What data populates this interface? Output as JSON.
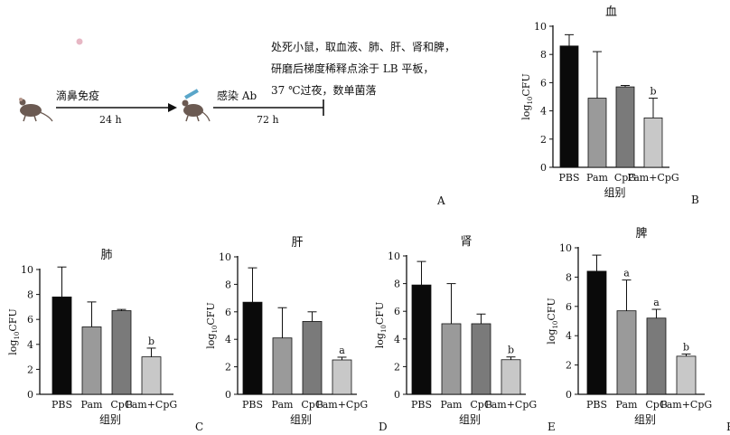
{
  "panel_a": {
    "steps": [
      "滴鼻免疫",
      "感染 Ab"
    ],
    "durations": [
      "24 h",
      "72 h"
    ],
    "note_lines": [
      "处死小鼠，取血液、肺、肝、肾和脾，",
      "研磨后梯度稀释点涂于 LB 平板，",
      "37 ℃过夜，数单菌落"
    ],
    "label": "A"
  },
  "chart_data": [
    {
      "panel": "B",
      "type": "bar",
      "title": "血",
      "xlabel": "组别",
      "ylabel_main": "log",
      "ylabel_sub": "10",
      "ylabel_tail": "CFU",
      "categories": [
        "PBS",
        "Pam",
        "CpG",
        "Pam+CpG"
      ],
      "values": [
        8.6,
        4.9,
        5.7,
        3.5
      ],
      "errors": [
        0.8,
        3.3,
        0.1,
        1.4
      ],
      "annotations": [
        "",
        "",
        "",
        "b"
      ],
      "colors": [
        "#0a0a0a",
        "#9a9a9a",
        "#7a7a7a",
        "#c8c8c8"
      ],
      "ylim": [
        0,
        10
      ],
      "yticks": [
        0,
        2,
        4,
        6,
        8,
        10
      ]
    },
    {
      "panel": "C",
      "type": "bar",
      "title": "肺",
      "xlabel": "组别",
      "ylabel_main": "log",
      "ylabel_sub": "10",
      "ylabel_tail": "CFU",
      "categories": [
        "PBS",
        "Pam",
        "CpG",
        "Pam+CpG"
      ],
      "values": [
        7.8,
        5.4,
        6.7,
        3.0
      ],
      "errors": [
        2.4,
        2.0,
        0.1,
        0.7
      ],
      "annotations": [
        "",
        "",
        "",
        "b"
      ],
      "colors": [
        "#0a0a0a",
        "#9a9a9a",
        "#7a7a7a",
        "#c8c8c8"
      ],
      "ylim": [
        0,
        10
      ],
      "yticks": [
        0,
        2,
        4,
        6,
        8,
        10
      ]
    },
    {
      "panel": "D",
      "type": "bar",
      "title": "肝",
      "xlabel": "组别",
      "ylabel_main": "log",
      "ylabel_sub": "10",
      "ylabel_tail": "CFU",
      "categories": [
        "PBS",
        "Pam",
        "CpG",
        "Pam+CpG"
      ],
      "values": [
        6.7,
        4.1,
        5.3,
        2.5
      ],
      "errors": [
        2.5,
        2.2,
        0.7,
        0.2
      ],
      "annotations": [
        "",
        "",
        "",
        "a"
      ],
      "colors": [
        "#0a0a0a",
        "#9a9a9a",
        "#7a7a7a",
        "#c8c8c8"
      ],
      "ylim": [
        0,
        10
      ],
      "yticks": [
        0,
        2,
        4,
        6,
        8,
        10
      ]
    },
    {
      "panel": "E",
      "type": "bar",
      "title": "肾",
      "xlabel": "组别",
      "ylabel_main": "log",
      "ylabel_sub": "10",
      "ylabel_tail": "CFU",
      "categories": [
        "PBS",
        "Pam",
        "CpG",
        "Pam+CpG"
      ],
      "values": [
        7.9,
        5.1,
        5.1,
        2.5
      ],
      "errors": [
        1.7,
        2.9,
        0.7,
        0.2
      ],
      "annotations": [
        "",
        "",
        "",
        "b"
      ],
      "colors": [
        "#0a0a0a",
        "#9a9a9a",
        "#7a7a7a",
        "#c8c8c8"
      ],
      "ylim": [
        0,
        10
      ],
      "yticks": [
        0,
        2,
        4,
        6,
        8,
        10
      ]
    },
    {
      "panel": "F",
      "type": "bar",
      "title": "脾",
      "xlabel": "组别",
      "ylabel_main": "log",
      "ylabel_sub": "10",
      "ylabel_tail": "CFU",
      "categories": [
        "PBS",
        "Pam",
        "CpG",
        "Pam+CpG"
      ],
      "values": [
        8.4,
        5.7,
        5.2,
        2.6
      ],
      "errors": [
        1.1,
        2.1,
        0.6,
        0.15
      ],
      "annotations": [
        "",
        "a",
        "a",
        "b"
      ],
      "colors": [
        "#0a0a0a",
        "#9a9a9a",
        "#7a7a7a",
        "#c8c8c8"
      ],
      "ylim": [
        0,
        10
      ],
      "yticks": [
        0,
        2,
        4,
        6,
        8,
        10
      ]
    }
  ]
}
